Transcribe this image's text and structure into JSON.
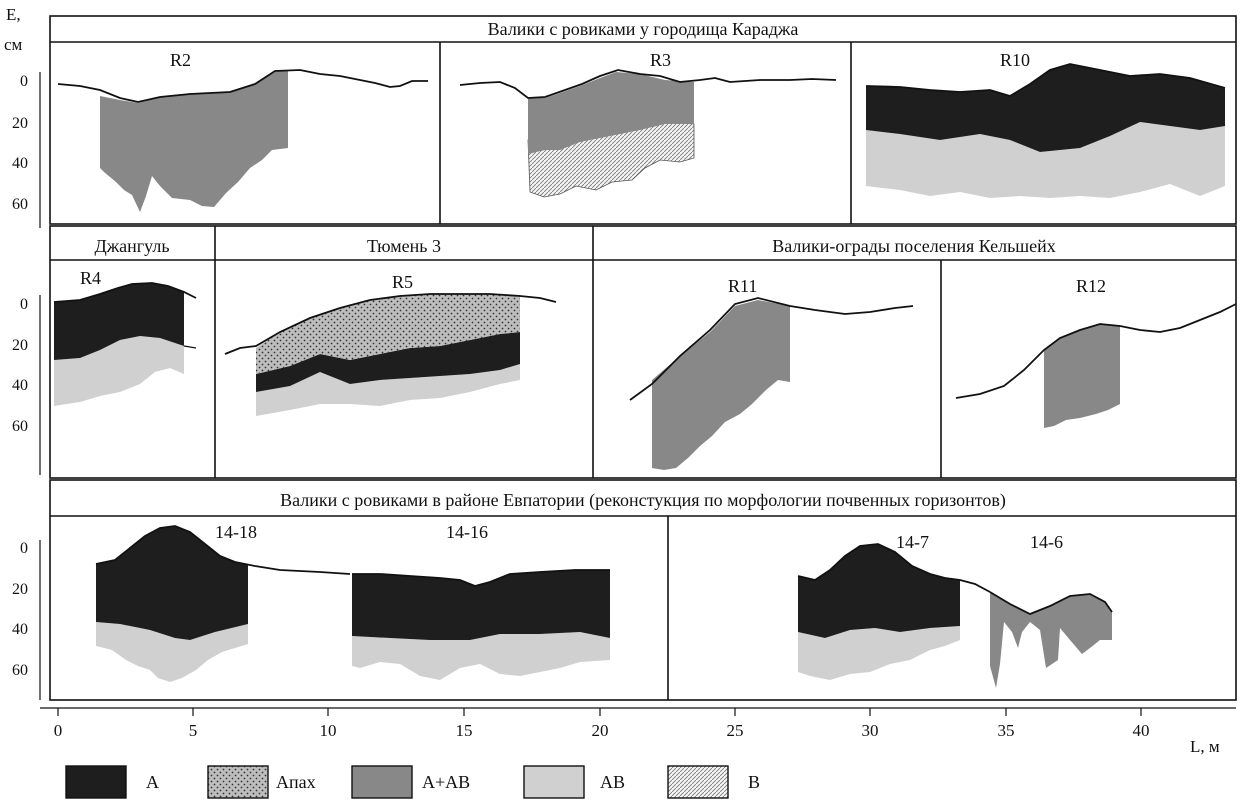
{
  "axis_y": {
    "label_line1": "E,",
    "label_line2": "см",
    "ticks": [
      "0",
      "20",
      "40",
      "60"
    ]
  },
  "axis_x": {
    "label": "L, м",
    "ticks": [
      "0",
      "5",
      "10",
      "15",
      "20",
      "25",
      "30",
      "35",
      "40"
    ]
  },
  "row1": {
    "title": "Валики с ровиками у городища Караджа",
    "profiles": [
      "R2",
      "R3",
      "R10"
    ]
  },
  "row2": {
    "sites": [
      "Джангуль",
      "Тюмень 3",
      "Валики-ограды поселения Кельшейх"
    ],
    "profiles": [
      "R4",
      "R5",
      "R11",
      "R12"
    ]
  },
  "row3": {
    "title": "Валики с ровиками в районе Евпатории (реконстукция по морфологии почвенных горизонтов)",
    "profiles": [
      "14-18",
      "14-16",
      "14-7",
      "14-6"
    ]
  },
  "legend": [
    {
      "label": "A",
      "color": "#1e1e1e",
      "pattern": "solid"
    },
    {
      "label": "Aпах",
      "color": "#a8a8a8",
      "pattern": "dots"
    },
    {
      "label": "A+AB",
      "color": "#888888",
      "pattern": "solid"
    },
    {
      "label": "AB",
      "color": "#d0d0d0",
      "pattern": "solid"
    },
    {
      "label": "B",
      "color": "#ffffff",
      "pattern": "hatch"
    }
  ]
}
